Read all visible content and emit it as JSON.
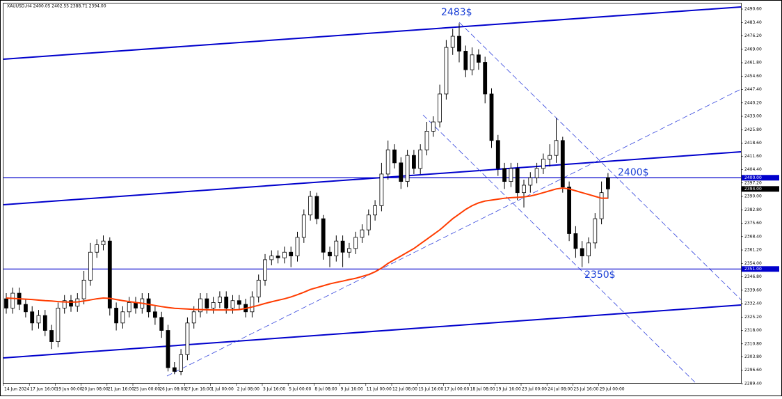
{
  "chart_data": {
    "type": "candlestick",
    "title": "XAUUSD,H4  2400.05 2402.55 2388.71 2394.00",
    "categories": [
      "14 Jun 2024",
      null,
      null,
      null,
      "17 Jun 16:00",
      null,
      null,
      null,
      "19 Jun 00:00",
      null,
      null,
      null,
      "20 Jun 08:00",
      null,
      null,
      null,
      "21 Jun 16:00",
      null,
      null,
      null,
      "25 Jun 00:00",
      null,
      null,
      null,
      "26 Jun 08:00",
      null,
      null,
      null,
      "27 Jun 16:00",
      null,
      null,
      null,
      "1 Jul 00:00",
      null,
      null,
      null,
      "2 Jul 08:00",
      null,
      null,
      null,
      "3 Jul 16:00",
      null,
      null,
      null,
      "5 Jul 00:00",
      null,
      null,
      null,
      "8 Jul 08:00",
      null,
      null,
      null,
      "9 Jul 16:00",
      null,
      null,
      null,
      "11 Jul 00:00",
      null,
      null,
      null,
      "12 Jul 08:00",
      null,
      null,
      null,
      "15 Jul 16:00",
      null,
      null,
      null,
      "17 Jul 00:00",
      null,
      null,
      null,
      "18 Jul 08:00",
      null,
      null,
      null,
      "19 Jul 16:00",
      null,
      null,
      null,
      "23 Jul 00:00",
      null,
      null,
      null,
      "24 Jul 08:00",
      null,
      null,
      null,
      "25 Jul 16:00",
      null,
      null,
      null,
      "29 Jul 00:00",
      null
    ],
    "open": [
      2335,
      2330,
      2338,
      2332,
      2328,
      2322,
      2326,
      2318,
      2312,
      2330,
      2334,
      2331,
      2335,
      2345,
      2360,
      2364,
      2366,
      2330,
      2322,
      2328,
      2333,
      2330,
      2335,
      2328,
      2325,
      2318,
      2298,
      2296,
      2305,
      2322,
      2328,
      2335,
      2330,
      2333,
      2336,
      2330,
      2334,
      2332,
      2328,
      2336,
      2345,
      2356,
      2358,
      2357,
      2360,
      2358,
      2368,
      2380,
      2390,
      2378,
      2360,
      2358,
      2366,
      2360,
      2362,
      2368,
      2372,
      2380,
      2385,
      2402,
      2415,
      2408,
      2398,
      2412,
      2405,
      2415,
      2425,
      2430,
      2445,
      2470,
      2476,
      2468,
      2458,
      2466,
      2462,
      2445,
      2420,
      2405,
      2398,
      2405,
      2392,
      2396,
      2400,
      2405,
      2410,
      2412,
      2420,
      2395,
      2370,
      2362,
      2358,
      2365,
      2378,
      2400.05
    ],
    "high": [
      2338,
      2341,
      2341,
      2335,
      2331,
      2329,
      2329,
      2321,
      2333,
      2337,
      2337,
      2338,
      2350,
      2365,
      2367,
      2369,
      2368,
      2333,
      2331,
      2336,
      2336,
      2338,
      2338,
      2331,
      2328,
      2321,
      2301,
      2308,
      2325,
      2331,
      2338,
      2338,
      2336,
      2339,
      2339,
      2337,
      2337,
      2335,
      2339,
      2348,
      2359,
      2361,
      2361,
      2363,
      2363,
      2371,
      2383,
      2393,
      2392,
      2380,
      2363,
      2369,
      2369,
      2365,
      2371,
      2375,
      2383,
      2388,
      2408,
      2420,
      2418,
      2411,
      2415,
      2415,
      2418,
      2430,
      2433,
      2450,
      2474,
      2480,
      2483,
      2471,
      2470,
      2469,
      2465,
      2448,
      2423,
      2408,
      2408,
      2408,
      2399,
      2403,
      2408,
      2413,
      2418,
      2432,
      2422,
      2398,
      2374,
      2366,
      2368,
      2381,
      2398,
      2402.55
    ],
    "low": [
      2327,
      2327,
      2329,
      2325,
      2318,
      2319,
      2315,
      2308,
      2309,
      2327,
      2328,
      2328,
      2332,
      2342,
      2357,
      2361,
      2326,
      2318,
      2319,
      2325,
      2327,
      2327,
      2325,
      2321,
      2314,
      2296,
      2294.5,
      2294,
      2302,
      2319,
      2325,
      2327,
      2327,
      2330,
      2327,
      2327,
      2329,
      2325,
      2325,
      2333,
      2342,
      2353,
      2354,
      2354,
      2352,
      2355,
      2365,
      2377,
      2375,
      2356,
      2352,
      2355,
      2352,
      2357,
      2359,
      2365,
      2369,
      2377,
      2382,
      2399,
      2405,
      2394,
      2395,
      2402,
      2402,
      2412,
      2422,
      2427,
      2442,
      2466,
      2462,
      2454,
      2455,
      2458,
      2440,
      2416,
      2401,
      2394,
      2395,
      2388,
      2384,
      2392,
      2397,
      2402,
      2406,
      2408,
      2392,
      2366,
      2357,
      2352,
      2354,
      2362,
      2375,
      2388.71
    ],
    "close": [
      2330,
      2338,
      2332,
      2328,
      2322,
      2326,
      2318,
      2312,
      2330,
      2334,
      2331,
      2335,
      2345,
      2360,
      2364,
      2366,
      2330,
      2322,
      2328,
      2333,
      2330,
      2335,
      2328,
      2325,
      2318,
      2298,
      2296,
      2305,
      2322,
      2328,
      2335,
      2330,
      2333,
      2336,
      2330,
      2334,
      2332,
      2328,
      2336,
      2345,
      2356,
      2358,
      2357,
      2360,
      2358,
      2368,
      2380,
      2390,
      2378,
      2360,
      2358,
      2366,
      2360,
      2362,
      2368,
      2372,
      2380,
      2385,
      2402,
      2415,
      2408,
      2398,
      2412,
      2405,
      2415,
      2425,
      2430,
      2445,
      2470,
      2476,
      2468,
      2458,
      2466,
      2462,
      2445,
      2420,
      2405,
      2398,
      2405,
      2392,
      2396,
      2400,
      2405,
      2410,
      2412,
      2420,
      2395,
      2370,
      2362,
      2358,
      2365,
      2378,
      2392,
      2394
    ],
    "indicator": {
      "color": "#ff3c00",
      "values": [
        2335.4,
        2335.2,
        2335,
        2334.8,
        2334.6,
        2334.3,
        2334,
        2333.8,
        2333.5,
        2333.3,
        2333.2,
        2333.3,
        2333.8,
        2334.4,
        2335,
        2335.4,
        2335.2,
        2334.6,
        2334,
        2333.5,
        2333,
        2332.6,
        2332,
        2331.4,
        2330.8,
        2330.3,
        2329.9,
        2329.7,
        2329.5,
        2329.3,
        2329.2,
        2329.1,
        2329,
        2329,
        2329,
        2329,
        2329.2,
        2329.8,
        2330.6,
        2331.5,
        2332.5,
        2333.4,
        2334.2,
        2335,
        2336,
        2337.2,
        2338.5,
        2340,
        2341,
        2342,
        2343,
        2343.8,
        2344.5,
        2345.3,
        2346,
        2347,
        2348,
        2349.5,
        2351.5,
        2354,
        2356,
        2358,
        2360,
        2362,
        2364.5,
        2367,
        2369.5,
        2372,
        2375,
        2378,
        2380.5,
        2383,
        2385,
        2386.5,
        2387.5,
        2388,
        2388.5,
        2389,
        2389.3,
        2389.5,
        2389.7,
        2390.2,
        2391,
        2392,
        2393,
        2394,
        2394.5,
        2394,
        2393,
        2392,
        2391,
        2390,
        2389,
        2389
      ]
    },
    "ylim": [
      2289.4,
      2493.6
    ],
    "yticks": [
      {
        "value": 2490.6,
        "label": "2490.60"
      },
      {
        "value": 2483.4,
        "label": "2483.40"
      },
      {
        "value": 2476.2,
        "label": "2476.20"
      },
      {
        "value": 2469,
        "label": "2469.00"
      },
      {
        "value": 2461.8,
        "label": "2461.80"
      },
      {
        "value": 2454.6,
        "label": "2454.60"
      },
      {
        "value": 2447.4,
        "label": "2447.40"
      },
      {
        "value": 2440.2,
        "label": "2440.20"
      },
      {
        "value": 2433,
        "label": "2433.00"
      },
      {
        "value": 2425.8,
        "label": "2425.80"
      },
      {
        "value": 2418.6,
        "label": "2418.60"
      },
      {
        "value": 2411.6,
        "label": "2411.60"
      },
      {
        "value": 2404.4,
        "label": "2404.40"
      },
      {
        "value": 2397.2,
        "label": "2397.20"
      },
      {
        "value": 2390,
        "label": "2390.00"
      },
      {
        "value": 2382.8,
        "label": "2382.80"
      },
      {
        "value": 2375.6,
        "label": "2375.60"
      },
      {
        "value": 2368.4,
        "label": "2368.40"
      },
      {
        "value": 2361.2,
        "label": "2361.20"
      },
      {
        "value": 2354,
        "label": "2354.00"
      },
      {
        "value": 2346.8,
        "label": "2346.80"
      },
      {
        "value": 2339.6,
        "label": "2339.60"
      },
      {
        "value": 2332.4,
        "label": "2332.40"
      },
      {
        "value": 2325.2,
        "label": "2325.20"
      },
      {
        "value": 2318,
        "label": "2318.00"
      },
      {
        "value": 2310.8,
        "label": "2310.80"
      },
      {
        "value": 2303.8,
        "label": "2303.80"
      },
      {
        "value": 2296.6,
        "label": "2296.60"
      },
      {
        "value": 2289.4,
        "label": "2289.40"
      }
    ],
    "hlines": [
      {
        "value": 2400,
        "label": "2400.00",
        "color": "#0000cc"
      },
      {
        "value": 2351,
        "label": "2351.00",
        "color": "#0000cc"
      }
    ],
    "current_price": {
      "value": 2394,
      "label": "2394.00"
    },
    "annotations": [
      "2483$",
      "2400$",
      "2350$"
    ],
    "annotation_color": "#1a3fd6"
  }
}
